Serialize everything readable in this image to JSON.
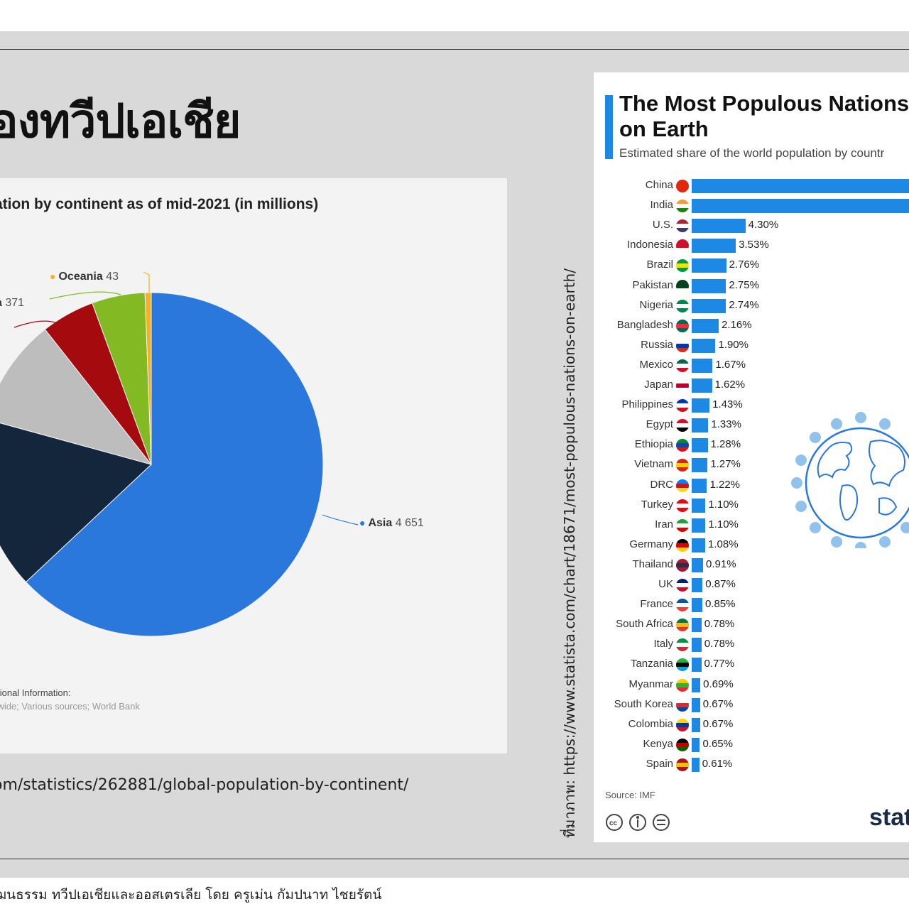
{
  "slide": {
    "heading": "องทวีปเอเชีย",
    "source_url": "om/statistics/262881/global-population-by-continent/",
    "vertical_url": "ที่มาภาพ: https://www.statista.com/chart/18671/most-populous-nations-on-earth/",
    "footer": "ฒนธรรม ทวีปเอเชียและออสเตรเลีย โดย ครูเม่น กัมปนาท ไชยรัตน์"
  },
  "chart_data": [
    {
      "type": "pie",
      "title": "ation by continent as of mid-2021 (in millions)",
      "slices": [
        {
          "name": "Asia",
          "value": 4651,
          "label": "Asia",
          "value_label": "4 651",
          "color": "#2a78dc"
        },
        {
          "name": "",
          "value": 1200,
          "color": "#13263c"
        },
        {
          "name": "",
          "value": 748,
          "color": "#bdbdbd"
        },
        {
          "name": "",
          "value": 371,
          "label": "a",
          "value_label": "371",
          "color": "#a50b0e"
        },
        {
          "name": "",
          "value": 369,
          "color": "#83ba23"
        },
        {
          "name": "Oceania",
          "value": 43,
          "label": "Oceania",
          "value_label": "43",
          "color": "#f4b223"
        }
      ],
      "additional_info_title": "ditional Information:",
      "additional_info_text": "rldwide; Various sources; World Bank"
    },
    {
      "type": "bar",
      "title": "The Most Populous Nations on Earth",
      "subtitle": "Estimated share of the world population by countr",
      "source": "Source: IMF",
      "brand": "stati",
      "bar_color": "#1e88e5",
      "categories": [
        "China",
        "India",
        "U.S.",
        "Indonesia",
        "Brazil",
        "Pakistan",
        "Nigeria",
        "Bangladesh",
        "Russia",
        "Mexico",
        "Japan",
        "Philippines",
        "Egypt",
        "Ethiopia",
        "Vietnam",
        "DRC",
        "Turkey",
        "Iran",
        "Germany",
        "Thailand",
        "UK",
        "France",
        "South Africa",
        "Italy",
        "Tanzania",
        "Myanmar",
        "South Korea",
        "Colombia",
        "Kenya",
        "Spain"
      ],
      "values": [
        18.0,
        17.7,
        4.3,
        3.53,
        2.76,
        2.75,
        2.74,
        2.16,
        1.9,
        1.67,
        1.62,
        1.43,
        1.33,
        1.28,
        1.27,
        1.22,
        1.1,
        1.1,
        1.08,
        0.91,
        0.87,
        0.85,
        0.78,
        0.78,
        0.77,
        0.69,
        0.67,
        0.67,
        0.65,
        0.61
      ],
      "value_labels": [
        "",
        "",
        "4.30%",
        "3.53%",
        "2.76%",
        "2.75%",
        "2.74%",
        "2.16%",
        "1.90%",
        "1.67%",
        "1.62%",
        "1.43%",
        "1.33%",
        "1.28%",
        "1.27%",
        "1.22%",
        "1.10%",
        "1.10%",
        "1.08%",
        "0.91%",
        "0.87%",
        "0.85%",
        "0.78%",
        "0.78%",
        "0.77%",
        "0.69%",
        "0.67%",
        "0.67%",
        "0.65%",
        "0.61%"
      ],
      "flags": [
        [
          "#de2910",
          "#de2910",
          "#de2910"
        ],
        [
          "#ff9933",
          "#ffffff",
          "#138808"
        ],
        [
          "#b22234",
          "#ffffff",
          "#3c3b6e"
        ],
        [
          "#ce1126",
          "#ce1126",
          "#ffffff"
        ],
        [
          "#009c3b",
          "#ffdf00",
          "#009c3b"
        ],
        [
          "#01411c",
          "#01411c",
          "#ffffff"
        ],
        [
          "#008751",
          "#ffffff",
          "#008751"
        ],
        [
          "#006a4e",
          "#f42a41",
          "#006a4e"
        ],
        [
          "#ffffff",
          "#0039a6",
          "#d52b1e"
        ],
        [
          "#006847",
          "#ffffff",
          "#ce1126"
        ],
        [
          "#ffffff",
          "#bc002d",
          "#ffffff"
        ],
        [
          "#0038a8",
          "#ffffff",
          "#ce1126"
        ],
        [
          "#ce1126",
          "#ffffff",
          "#000000"
        ],
        [
          "#078930",
          "#0f47af",
          "#da121a"
        ],
        [
          "#da251d",
          "#ffcd00",
          "#da251d"
        ],
        [
          "#007fff",
          "#ce1021",
          "#f7d618"
        ],
        [
          "#e30a17",
          "#ffffff",
          "#e30a17"
        ],
        [
          "#239f40",
          "#ffffff",
          "#da0000"
        ],
        [
          "#000000",
          "#dd0000",
          "#ffce00"
        ],
        [
          "#a51931",
          "#2d2a4a",
          "#a51931"
        ],
        [
          "#012169",
          "#ffffff",
          "#c8102e"
        ],
        [
          "#0055a4",
          "#ffffff",
          "#ef4135"
        ],
        [
          "#007749",
          "#ffb81c",
          "#de3831"
        ],
        [
          "#009246",
          "#ffffff",
          "#ce2b37"
        ],
        [
          "#1eb53a",
          "#000000",
          "#00a3dd"
        ],
        [
          "#fecb00",
          "#34b233",
          "#ea2839"
        ],
        [
          "#ffffff",
          "#cd2e3a",
          "#0047a0"
        ],
        [
          "#fcd116",
          "#003893",
          "#ce1126"
        ],
        [
          "#000000",
          "#bb0000",
          "#006600"
        ],
        [
          "#aa151b",
          "#f1bf00",
          "#aa151b"
        ]
      ]
    }
  ]
}
